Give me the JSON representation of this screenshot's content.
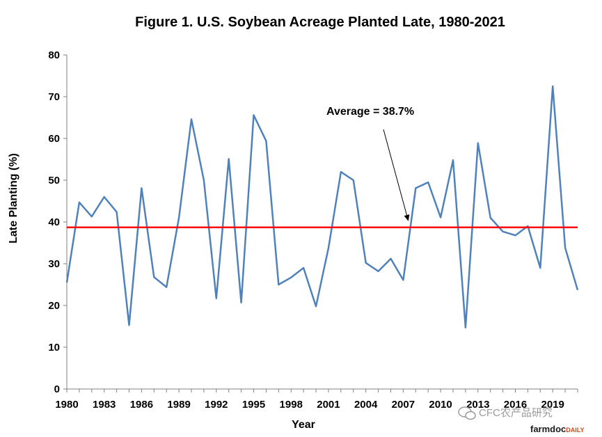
{
  "chart_data": {
    "type": "line",
    "title": "Figure 1. U.S. Soybean Acreage Planted Late, 1980-2021",
    "xlabel": "Year",
    "ylabel": "Late Planting (%)",
    "ylim": [
      0,
      80
    ],
    "yticks": [
      "0",
      "10",
      "20",
      "30",
      "40",
      "50",
      "60",
      "70",
      "80"
    ],
    "xlim": [
      1980,
      2021
    ],
    "xticks": [
      "1980",
      "1983",
      "1986",
      "1989",
      "1992",
      "1995",
      "1998",
      "2001",
      "2004",
      "2007",
      "2010",
      "2013",
      "2016",
      "2019"
    ],
    "grid": false,
    "series": [
      {
        "x": [
          1980,
          1981,
          1982,
          1983,
          1984,
          1985,
          1986,
          1987,
          1988,
          1989,
          1990,
          1991,
          1992,
          1993,
          1994,
          1995,
          1996,
          1997,
          1998,
          1999,
          2000,
          2001,
          2002,
          2003,
          2004,
          2005,
          2006,
          2007,
          2008,
          2009,
          2010,
          2011,
          2012,
          2013,
          2014,
          2015,
          2016,
          2017,
          2018,
          2019,
          2020,
          2021
        ],
        "values": [
          25.5,
          44.7,
          41.3,
          46.0,
          42.4,
          15.3,
          48.1,
          26.8,
          24.4,
          41.0,
          64.6,
          50.0,
          21.7,
          55.1,
          20.7,
          65.6,
          59.4,
          25.0,
          26.7,
          29.0,
          19.8,
          33.8,
          52.0,
          50.0,
          30.2,
          28.2,
          31.2,
          26.1,
          48.1,
          49.5,
          41.1,
          54.8,
          14.7,
          58.9,
          41.0,
          37.7,
          36.8,
          39.0,
          29.0,
          72.5,
          33.8,
          23.7
        ],
        "color": "#4f81bd"
      }
    ],
    "reference_line": {
      "y": 38.7,
      "color": "#ff0000"
    },
    "annotation": {
      "text": "Average = 38.7%",
      "arrow_to": [
        2007.4,
        38.7
      ]
    }
  },
  "watermark": {
    "wechat_text": "CFC农产品研究",
    "brand_main": "farmdoc",
    "brand_suffix": "DAILY",
    "brand_color": "#d04a1b"
  }
}
